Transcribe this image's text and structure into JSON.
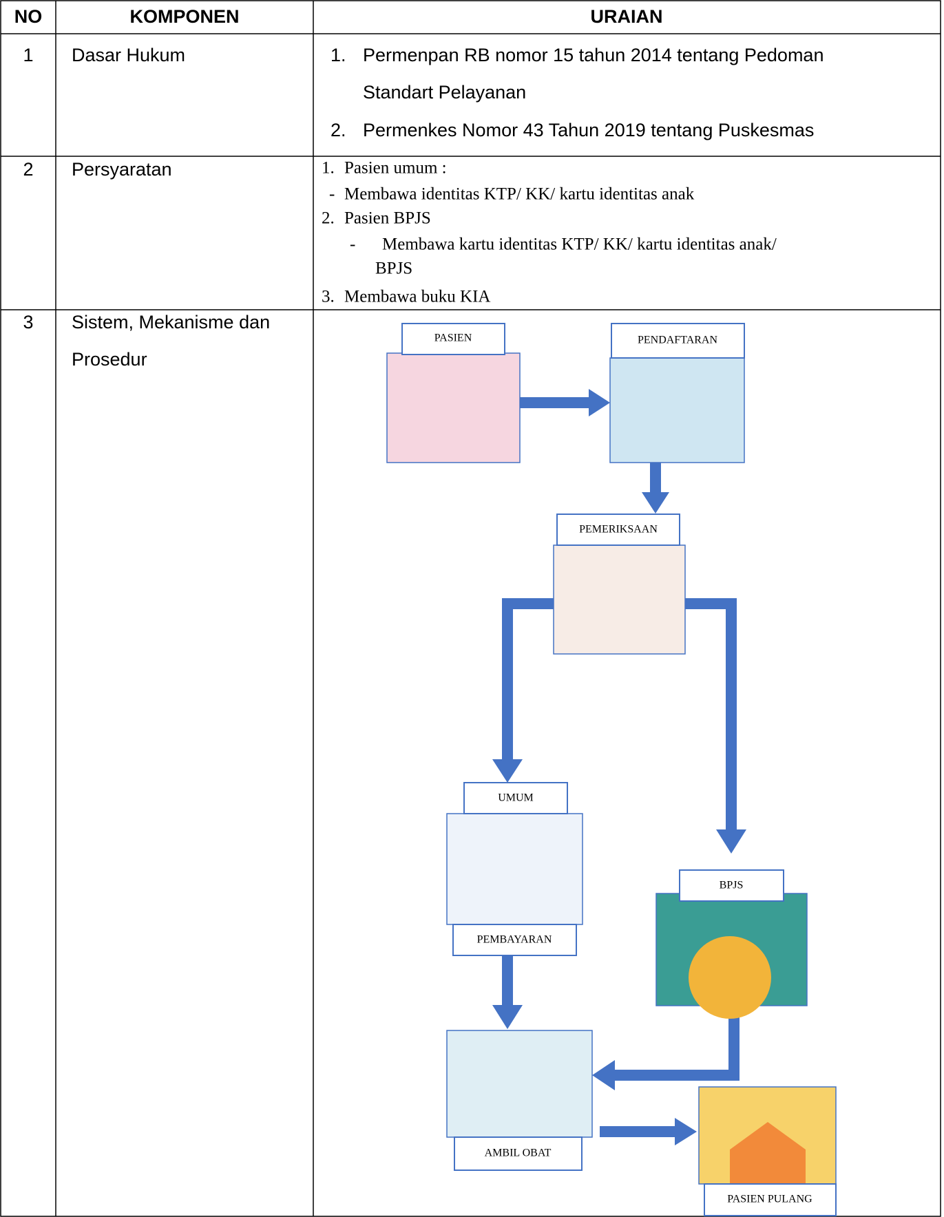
{
  "table": {
    "header": [
      "NO",
      "KOMPONEN",
      "URAIAN"
    ],
    "rows": [
      {
        "no": "1",
        "component": "Dasar Hukum",
        "items": [
          {
            "marker": "1.",
            "text": "Permenpan RB nomor 15 tahun 2014 tentang Pedoman"
          },
          {
            "marker": "",
            "text": "Standart Pelayanan"
          },
          {
            "marker": "2.",
            "text": "Permenkes Nomor 43 Tahun 2019 tentang Puskesmas"
          }
        ]
      },
      {
        "no": "2",
        "component": "Persyaratan",
        "items": [
          {
            "marker": "1.",
            "text": "Pasien umum :"
          },
          {
            "marker": "-",
            "text": "Membawa identitas KTP/ KK/ kartu identitas anak"
          },
          {
            "marker": "2.",
            "text": "Pasien BPJS"
          },
          {
            "marker": "-",
            "text": "Membawa kartu identitas KTP/ KK/ kartu identitas anak/"
          },
          {
            "marker": "",
            "text": "BPJS"
          },
          {
            "marker": "3.",
            "text": "Membawa buku KIA"
          }
        ]
      },
      {
        "no": "3",
        "component": [
          "Sistem, Mekanisme dan",
          "Prosedur"
        ]
      }
    ]
  },
  "flow": {
    "nodes": [
      "PASIEN",
      "PENDAFTARAN",
      "PEMERIKSAAN",
      "UMUM",
      "PEMBAYARAN",
      "BPJS",
      "AMBIL OBAT",
      "PASIEN PULANG"
    ]
  }
}
